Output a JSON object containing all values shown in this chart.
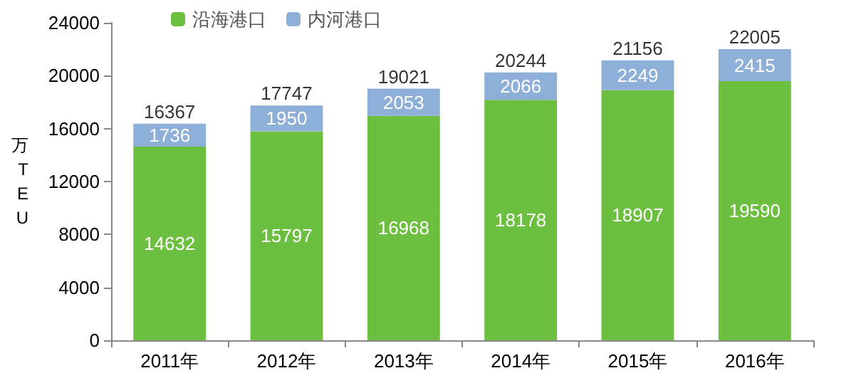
{
  "chart_data": {
    "type": "bar",
    "stacked": true,
    "categories": [
      "2011年",
      "2012年",
      "2013年",
      "2014年",
      "2015年",
      "2016年"
    ],
    "series": [
      {
        "name": "沿海港口",
        "color": "#6cbf3f",
        "values": [
          14632,
          15797,
          16968,
          18178,
          18907,
          19590
        ]
      },
      {
        "name": "内河港口",
        "color": "#8eb0d8",
        "values": [
          1736,
          1950,
          2053,
          2066,
          2249,
          2415
        ]
      }
    ],
    "ylabel": "万TEU",
    "ylim": [
      0,
      24000
    ],
    "yticks": [
      0,
      4000,
      8000,
      12000,
      16000,
      20000,
      24000
    ],
    "data_labels": true,
    "totals": [
      "16367",
      "17747",
      "19021",
      "20244",
      "21156",
      "22005"
    ],
    "legend": "top left"
  }
}
